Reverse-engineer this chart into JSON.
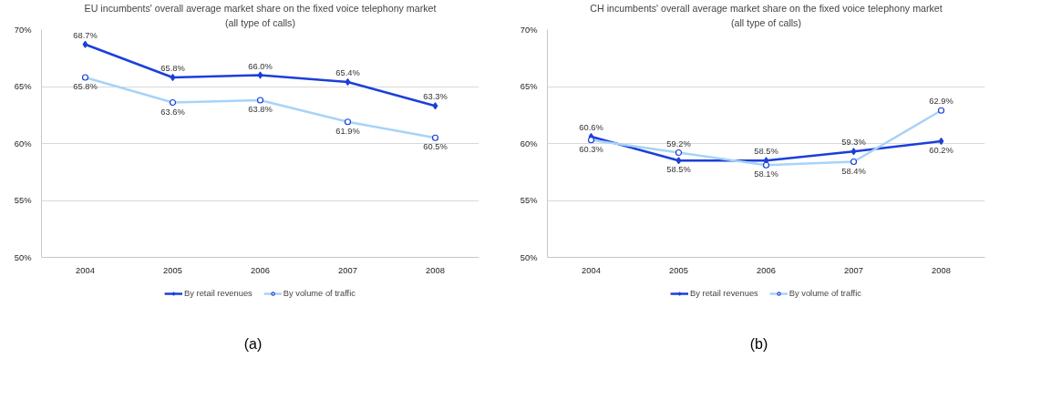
{
  "chart_data": [
    {
      "type": "line",
      "title": "EU incumbents' overall average market share on the fixed voice telephony market",
      "subtitle": "(all type of calls)",
      "categories": [
        "2004",
        "2005",
        "2006",
        "2007",
        "2008"
      ],
      "series": [
        {
          "name": "By retail revenues",
          "color": "#1c3fd9",
          "marker": "diamond",
          "values": [
            68.7,
            65.8,
            66.0,
            65.4,
            63.3
          ],
          "value_labels": [
            "68.7%",
            "65.8%",
            "66.0%",
            "65.4%",
            "63.3%"
          ]
        },
        {
          "name": "By volume of traffic",
          "color": "#a8d3f7",
          "marker": "circle",
          "values": [
            65.8,
            63.6,
            63.8,
            61.9,
            60.5
          ],
          "value_labels": [
            "65.8%",
            "63.6%",
            "63.8%",
            "61.9%",
            "60.5%"
          ]
        }
      ],
      "ylim": [
        50,
        70
      ],
      "yticks": [
        {
          "value": 50,
          "label": "50%"
        },
        {
          "value": 55,
          "label": "55%"
        },
        {
          "value": 60,
          "label": "60%"
        },
        {
          "value": 65,
          "label": "65%"
        },
        {
          "value": 70,
          "label": "70%"
        }
      ],
      "grid": "y",
      "legend": "bottom",
      "annotations": [
        "(a)"
      ]
    },
    {
      "type": "line",
      "title": "CH incumbents' overall average market share on the fixed voice telephony market",
      "subtitle": "(all type of calls)",
      "categories": [
        "2004",
        "2005",
        "2006",
        "2007",
        "2008"
      ],
      "series": [
        {
          "name": "By retail revenues",
          "color": "#1c3fd9",
          "marker": "diamond",
          "values": [
            60.6,
            58.5,
            58.5,
            59.3,
            60.2
          ],
          "value_labels": [
            "60.6%",
            "58.5%",
            "58.5%",
            "59.3%",
            "60.2%"
          ]
        },
        {
          "name": "By volume of traffic",
          "color": "#a8d3f7",
          "marker": "circle",
          "values": [
            60.3,
            59.2,
            58.1,
            58.4,
            62.9
          ],
          "value_labels": [
            "60.3%",
            "59.2%",
            "58.1%",
            "58.4%",
            "62.9%"
          ]
        }
      ],
      "ylim": [
        50,
        70
      ],
      "yticks": [
        {
          "value": 50,
          "label": "50%"
        },
        {
          "value": 55,
          "label": "55%"
        },
        {
          "value": 60,
          "label": "60%"
        },
        {
          "value": 65,
          "label": "65%"
        },
        {
          "value": 70,
          "label": "70%"
        }
      ],
      "grid": "y",
      "legend": "bottom",
      "annotations": [
        "(b)"
      ]
    }
  ]
}
